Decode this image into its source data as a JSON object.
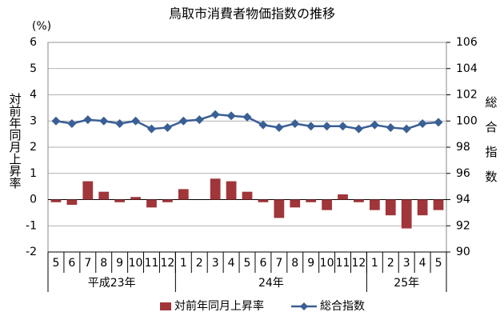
{
  "chart_data": {
    "type": "bar_line",
    "title": "鳥取市消費者物価指数の推移",
    "y_unit": "(%)",
    "y_label": "対前年同月上昇率",
    "y2_label": "総合指数",
    "category_groups": [
      {
        "label": "平成23年",
        "categories": [
          "5",
          "6",
          "7",
          "8",
          "9",
          "10",
          "11",
          "12"
        ]
      },
      {
        "label": "24年",
        "categories": [
          "1",
          "2",
          "3",
          "4",
          "5",
          "6",
          "7",
          "8",
          "9",
          "10",
          "11",
          "12"
        ]
      },
      {
        "label": "25年",
        "categories": [
          "1",
          "2",
          "3",
          "4",
          "5"
        ]
      }
    ],
    "ylim": [
      -2,
      6
    ],
    "yticks": [
      -2,
      -1,
      0,
      1,
      2,
      3,
      4,
      5,
      6
    ],
    "y2lim": [
      90,
      106
    ],
    "y2ticks": [
      90,
      92,
      94,
      96,
      98,
      100,
      102,
      104,
      106
    ],
    "grid": true,
    "legend": "bottom",
    "series": [
      {
        "name": "対前年同月上昇率",
        "type": "bar",
        "color": "#a0353a",
        "values": [
          -0.1,
          -0.2,
          0.7,
          0.3,
          -0.1,
          0.1,
          -0.3,
          -0.1,
          0.4,
          0.0,
          0.8,
          0.7,
          0.3,
          -0.1,
          -0.7,
          -0.3,
          -0.1,
          -0.4,
          0.2,
          -0.1,
          -0.4,
          -0.6,
          -1.1,
          -0.6,
          -0.4
        ]
      },
      {
        "name": "総合指数",
        "type": "line",
        "axis": "y2",
        "color": "#3a5f95",
        "values": [
          100.0,
          99.8,
          100.1,
          100.0,
          99.8,
          100.0,
          99.4,
          99.5,
          100.0,
          100.1,
          100.5,
          100.4,
          100.3,
          99.7,
          99.5,
          99.8,
          99.6,
          99.6,
          99.6,
          99.4,
          99.7,
          99.5,
          99.4,
          99.8,
          99.9
        ]
      }
    ]
  }
}
